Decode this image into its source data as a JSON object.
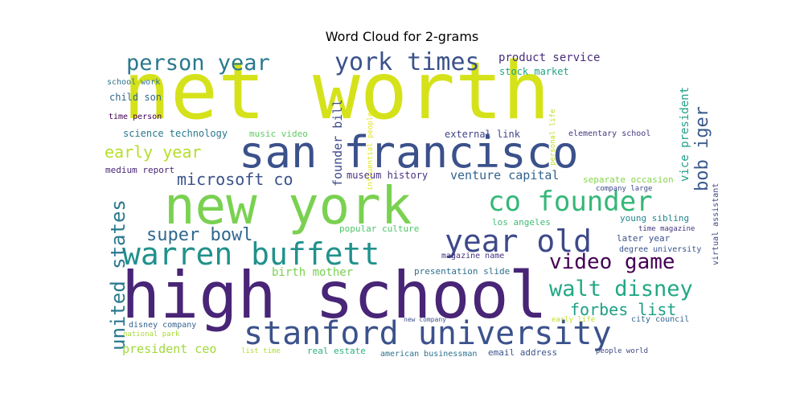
{
  "chart_data": {
    "type": "wordcloud",
    "title": "Word Cloud for 2-grams",
    "words": [
      {
        "text": "net worth",
        "color": "#d5e21a"
      },
      {
        "text": "high school",
        "color": "#482576"
      },
      {
        "text": "new york",
        "color": "#7ad151"
      },
      {
        "text": "san francisco",
        "color": "#3b518b"
      },
      {
        "text": "stanford university",
        "color": "#3b528b"
      },
      {
        "text": "warren buffett",
        "color": "#21918c"
      },
      {
        "text": "york times",
        "color": "#3b528b"
      },
      {
        "text": "co founder",
        "color": "#35b779"
      },
      {
        "text": "year old",
        "color": "#3e4989"
      },
      {
        "text": "person year",
        "color": "#2a788e"
      },
      {
        "text": "walt disney",
        "color": "#22a884"
      },
      {
        "text": "video game",
        "color": "#440154"
      },
      {
        "text": "united states",
        "color": "#2a788e"
      },
      {
        "text": "early year",
        "color": "#b5de2b"
      },
      {
        "text": "super bowl",
        "color": "#31688e"
      },
      {
        "text": "microsoft co",
        "color": "#3b528b"
      },
      {
        "text": "bob iger",
        "color": "#38598c"
      },
      {
        "text": "forbes list",
        "color": "#1fa088"
      },
      {
        "text": "president ceo",
        "color": "#a0da39"
      },
      {
        "text": "founder bill",
        "color": "#3e4a89"
      },
      {
        "text": "vice president",
        "color": "#1f9e89"
      },
      {
        "text": "venture capital",
        "color": "#33638d"
      },
      {
        "text": "product service",
        "color": "#472c7a"
      },
      {
        "text": "birth mother",
        "color": "#7ad151"
      },
      {
        "text": "stock market",
        "color": "#20a386"
      },
      {
        "text": "child son",
        "color": "#31688e"
      },
      {
        "text": "science technology",
        "color": "#2a788e"
      },
      {
        "text": "museum history",
        "color": "#46307e"
      },
      {
        "text": "external link",
        "color": "#414487"
      },
      {
        "text": "music video",
        "color": "#5ec962"
      },
      {
        "text": "medium report",
        "color": "#482677"
      },
      {
        "text": "school work",
        "color": "#2c728e"
      },
      {
        "text": "time person",
        "color": "#440154"
      },
      {
        "text": "elementary school",
        "color": "#453781"
      },
      {
        "text": "separate occasion",
        "color": "#84d44b"
      },
      {
        "text": "company large",
        "color": "#3e4989"
      },
      {
        "text": "young sibling",
        "color": "#25858e"
      },
      {
        "text": "time magazine",
        "color": "#453581"
      },
      {
        "text": "later year",
        "color": "#3b528b"
      },
      {
        "text": "degree university",
        "color": "#39558c"
      },
      {
        "text": "los angeles",
        "color": "#3fbc73"
      },
      {
        "text": "popular culture",
        "color": "#50c46a"
      },
      {
        "text": "magazine name",
        "color": "#46337f"
      },
      {
        "text": "presentation slide",
        "color": "#2e6f8e"
      },
      {
        "text": "virtual assistant",
        "color": "#404588"
      },
      {
        "text": "influential people",
        "color": "#e2e418"
      },
      {
        "text": "personal life",
        "color": "#bddf26"
      },
      {
        "text": "disney company",
        "color": "#33638d"
      },
      {
        "text": "national park",
        "color": "#a8db34"
      },
      {
        "text": "list time",
        "color": "#b0dd2f"
      },
      {
        "text": "real estate",
        "color": "#2db27d"
      },
      {
        "text": "american businessman",
        "color": "#2c718e"
      },
      {
        "text": "email address",
        "color": "#3b528b"
      },
      {
        "text": "new company",
        "color": "#3b518b"
      },
      {
        "text": "early life",
        "color": "#c0df25"
      },
      {
        "text": "city council",
        "color": "#32658e"
      },
      {
        "text": "people world",
        "color": "#3e4989"
      }
    ]
  }
}
